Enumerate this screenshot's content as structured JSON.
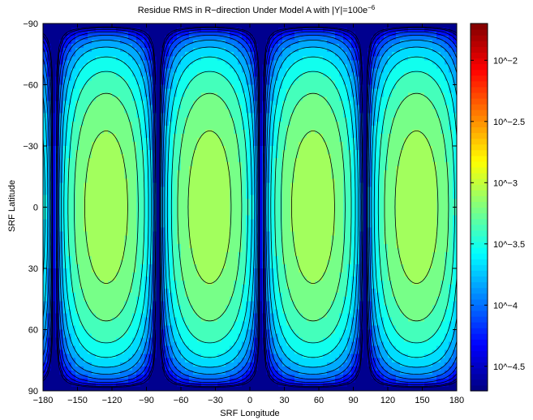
{
  "chart_data": {
    "type": "heatmap",
    "title_main": "Residue RMS in R−direction Under Model A with |Y|=100e",
    "title_exponent": "−6",
    "xlabel": "SRF Longitude",
    "ylabel": "SRF Latitude",
    "xlim": [
      -180,
      180
    ],
    "ylim": [
      -90,
      90
    ],
    "y_axis_reversed": true,
    "x_ticks": [
      -180,
      -150,
      -120,
      -90,
      -60,
      -30,
      0,
      30,
      60,
      90,
      120,
      150,
      180
    ],
    "x_tick_labels": [
      "−180",
      "−150",
      "−120",
      "−90",
      "−60",
      "−30",
      "0",
      "30",
      "60",
      "90",
      "120",
      "150",
      "180"
    ],
    "y_ticks": [
      -90,
      -60,
      -30,
      0,
      30,
      60,
      90
    ],
    "y_tick_labels": [
      "−90",
      "−60",
      "−30",
      "0",
      "30",
      "60",
      "90"
    ],
    "colorbar": {
      "scale": "log10",
      "range": [
        -4.7,
        -1.7
      ],
      "ticks": [
        -2,
        -2.5,
        -3,
        -3.5,
        -4,
        -4.5
      ],
      "tick_labels": [
        "10^−2",
        "10^−2.5",
        "10^−3",
        "10^−3.5",
        "10^−4",
        "10^−4.5"
      ],
      "colormap": "jet"
    },
    "field": {
      "description_of_shape": "value proportional to |sin(2*(lon-lon0))| * cos(lat), lon0 = 10",
      "peak_centers_longitude": [
        -125,
        55
      ],
      "peak_log10_value": -3.05,
      "min_log10_value": -4.7,
      "contour_levels_log10": [
        -3.15,
        -3.3,
        -3.45,
        -3.6,
        -3.75,
        -3.9,
        -4.05,
        -4.2,
        -4.35,
        -4.5,
        -4.6
      ]
    },
    "grid": false,
    "legend": "none"
  }
}
